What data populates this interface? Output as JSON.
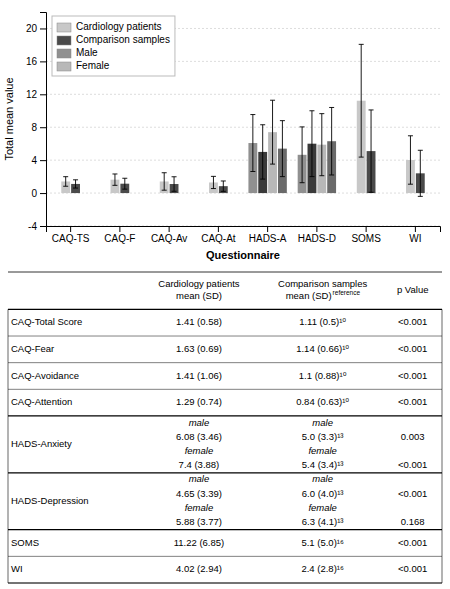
{
  "chart_data": [
    {
      "type": "bar",
      "xlabel": "Questionnaire",
      "ylabel": "Total mean value",
      "categories": [
        "CAQ-TS",
        "CAQ-F",
        "CAQ-Av",
        "CAQ-At",
        "HADS-A",
        "HADS-D",
        "SOMS",
        "WI"
      ],
      "groups": [
        {
          "values": [
            1.41,
            1.11
          ],
          "errors": [
            0.58,
            0.5
          ],
          "colors": [
            "#c8c8c8",
            "#4a4a4a"
          ]
        },
        {
          "values": [
            1.63,
            1.14
          ],
          "errors": [
            0.69,
            0.66
          ],
          "colors": [
            "#c8c8c8",
            "#4a4a4a"
          ]
        },
        {
          "values": [
            1.41,
            1.1
          ],
          "errors": [
            1.06,
            0.88
          ],
          "colors": [
            "#c8c8c8",
            "#4a4a4a"
          ]
        },
        {
          "values": [
            1.29,
            0.84
          ],
          "errors": [
            0.74,
            0.63
          ],
          "colors": [
            "#c8c8c8",
            "#4a4a4a"
          ]
        },
        {
          "values": [
            6.08,
            5.0,
            7.4,
            5.4
          ],
          "errors": [
            3.46,
            3.3,
            3.88,
            3.4
          ],
          "colors": [
            "#909090",
            "#3a3a3a",
            "#b8b8b8",
            "#6a6a6a"
          ]
        },
        {
          "values": [
            4.65,
            6.0,
            5.88,
            6.3
          ],
          "errors": [
            3.39,
            4.0,
            3.77,
            4.1
          ],
          "colors": [
            "#909090",
            "#3a3a3a",
            "#b8b8b8",
            "#6a6a6a"
          ]
        },
        {
          "values": [
            11.22,
            5.1
          ],
          "errors": [
            6.85,
            5.0
          ],
          "colors": [
            "#c8c8c8",
            "#4a4a4a"
          ]
        },
        {
          "values": [
            4.02,
            2.4
          ],
          "errors": [
            2.94,
            2.8
          ],
          "colors": [
            "#c8c8c8",
            "#4a4a4a"
          ]
        }
      ],
      "legend_items": [
        {
          "name": "Cardiology patients",
          "color": "#c8c8c8"
        },
        {
          "name": "Comparison samples",
          "color": "#4a4a4a"
        },
        {
          "name": "Male",
          "color": "#909090"
        },
        {
          "name": "Female",
          "color": "#b8b8b8"
        }
      ],
      "legend": "upper-left",
      "ylim": [
        -4,
        22
      ],
      "yticks": [
        -4,
        0,
        4,
        8,
        12,
        16,
        20
      ],
      "grid": true
    },
    {
      "type": "table",
      "header": [
        null,
        {
          "lines": [
            "Cardiology patients",
            "mean (SD)"
          ]
        },
        {
          "lines": [
            "Comparison samples",
            "mean (SD)"
          ],
          "superscript": "reference"
        },
        {
          "lines": [
            "p Value"
          ]
        }
      ],
      "rows": [
        {
          "label": "CAQ-Total Score",
          "cells": [
            "1.41 (0.58)",
            "1.11 (0.5)¹⁰",
            "<0.001"
          ]
        },
        {
          "label": "CAQ-Fear",
          "cells": [
            "1.63 (0.69)",
            "1.14 (0.66)¹⁰",
            "<0.001"
          ]
        },
        {
          "label": "CAQ-Avoidance",
          "cells": [
            "1.41 (1.06)",
            "1.1 (0.88)¹⁰",
            "<0.001"
          ]
        },
        {
          "label": "CAQ-Attention",
          "cells": [
            "1.29 (0.74)",
            "0.84 (0.63)¹⁰",
            "<0.001"
          ]
        },
        {
          "label": "HADS-Anxiety",
          "cells": [
            [
              "male",
              "6.08 (3.46)",
              "female",
              "7.4 (3.88)"
            ],
            [
              "male",
              "5.0 (3.3)¹³",
              "female",
              "5.4 (3.4)¹³"
            ],
            [
              null,
              "0.003",
              null,
              "<0.001"
            ]
          ]
        },
        {
          "label": "HADS-Depression",
          "cells": [
            [
              "male",
              "4.65 (3.39)",
              "female",
              "5.88 (3.77)"
            ],
            [
              "male",
              "6.0 (4.0)¹³",
              "female",
              "6.3 (4.1)¹³"
            ],
            [
              null,
              "<0.001",
              null,
              "0.168"
            ]
          ]
        },
        {
          "label": "SOMS",
          "cells": [
            "11.22 (6.85)",
            "5.1 (5.0)¹⁶",
            "<0.001"
          ]
        },
        {
          "label": "WI",
          "cells": [
            "4.02 (2.94)",
            "2.4 (2.8)¹⁶",
            "<0.001"
          ]
        }
      ]
    }
  ]
}
